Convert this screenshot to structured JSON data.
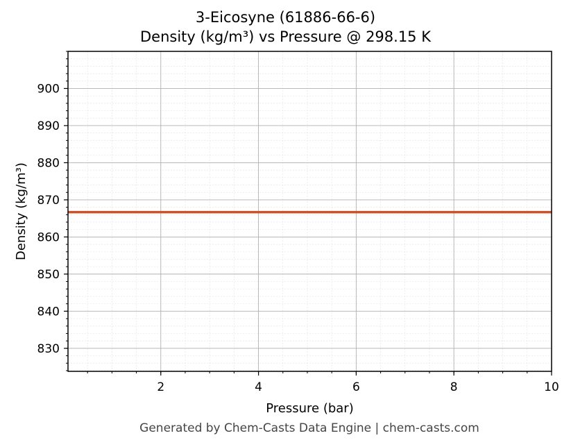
{
  "chart_data": {
    "type": "line",
    "title": "3-Eicosyne (61886-66-6)",
    "subtitle": "Density (kg/m³) vs Pressure @ 298.15 K",
    "xlabel": "Pressure (bar)",
    "ylabel": "Density (kg/m³)",
    "xlim": [
      0.1,
      10
    ],
    "ylim": [
      823.8,
      910
    ],
    "x_ticks": [
      2,
      4,
      6,
      8,
      10
    ],
    "y_ticks": [
      830,
      840,
      850,
      860,
      870,
      880,
      890,
      900
    ],
    "grid": true,
    "series": [
      {
        "color": "#c8522a",
        "x": [
          0.1,
          10
        ],
        "y": [
          866.7,
          866.7
        ]
      }
    ]
  },
  "footer": "Generated by Chem-Casts Data Engine | chem-casts.com"
}
